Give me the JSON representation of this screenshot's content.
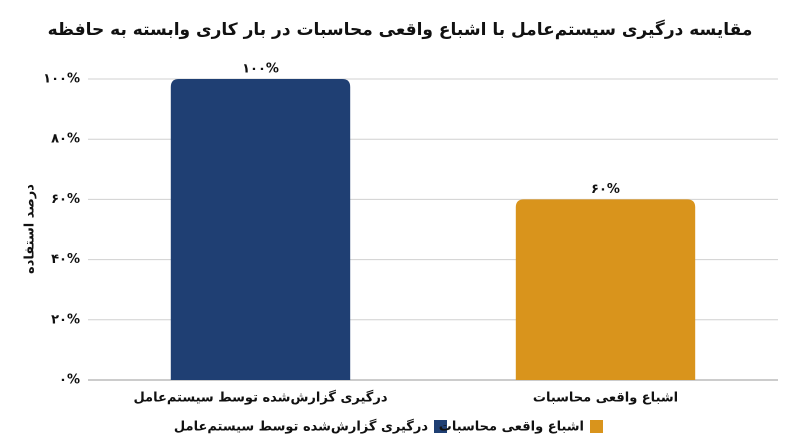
{
  "chart_data": {
    "type": "bar",
    "title": "مقایسه درگیری سیستم‌عامل با اشباع واقعی محاسبات در بار کاری وابسته به حافظه",
    "ylabel": "درصد استفاده",
    "categories": [
      "درگیری گزارش‌شده توسط سیستم‌عامل",
      "اشباع واقعی محاسبات"
    ],
    "values": [
      100,
      60
    ],
    "value_labels": [
      "۱۰۰%",
      "۶۰%"
    ],
    "colors": [
      "#1f3f73",
      "#d9941c"
    ],
    "ylim": [
      0,
      100
    ],
    "yticks": [
      {
        "value": 0,
        "label": "۰%"
      },
      {
        "value": 20,
        "label": "۲۰%"
      },
      {
        "value": 40,
        "label": "۴۰%"
      },
      {
        "value": 60,
        "label": "۶۰%"
      },
      {
        "value": 80,
        "label": "۸۰%"
      },
      {
        "value": 100,
        "label": "۱۰۰%"
      }
    ],
    "grid": true
  }
}
